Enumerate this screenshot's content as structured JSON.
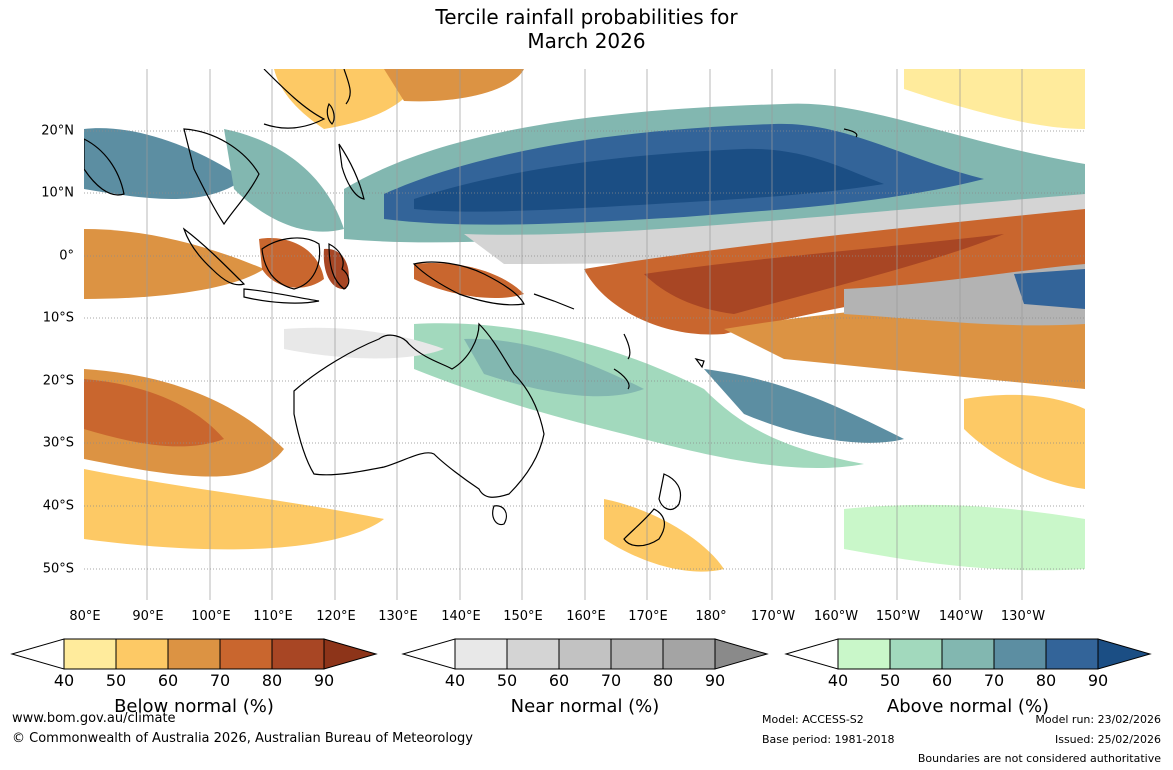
{
  "title_line1": "Tercile rainfall probabilities for",
  "title_line2": "March 2026",
  "lat_labels": [
    "20°N",
    "10°N",
    "0°",
    "10°S",
    "20°S",
    "30°S",
    "40°S",
    "50°S"
  ],
  "lon_labels": [
    "80°E",
    "90°E",
    "100°E",
    "110°E",
    "120°E",
    "130°E",
    "140°E",
    "150°E",
    "160°E",
    "170°E",
    "180°",
    "170°W",
    "160°W",
    "150°W",
    "140°W",
    "130°W"
  ],
  "colorbars": {
    "below": {
      "title": "Below normal (%)",
      "ticks": [
        "40",
        "50",
        "60",
        "70",
        "80",
        "90"
      ],
      "colors": [
        "#ffffff",
        "#ffeb9c",
        "#fdc965",
        "#dc9343",
        "#c9662e",
        "#a84624",
        "#8d3419"
      ]
    },
    "near": {
      "title": "Near normal (%)",
      "ticks": [
        "40",
        "50",
        "60",
        "70",
        "80",
        "90"
      ],
      "colors": [
        "#ffffff",
        "#e8e8e8",
        "#d4d4d4",
        "#c2c2c2",
        "#b3b3b3",
        "#a4a4a4",
        "#8a8a8a"
      ]
    },
    "above": {
      "title": "Above normal (%)",
      "ticks": [
        "40",
        "50",
        "60",
        "70",
        "80",
        "90"
      ],
      "colors": [
        "#ffffff",
        "#c9f7c9",
        "#a2d9bd",
        "#82b7b0",
        "#5c8ea2",
        "#336499",
        "#1b4e84"
      ]
    }
  },
  "footer": {
    "website": "www.bom.gov.au/climate",
    "copyright": "© Commonwealth of Australia 2026, Australian Bureau of Meteorology",
    "model": "Model: ACCESS-S2",
    "base_period": "Base period: 1981-2018",
    "model_run": "Model run: 23/02/2026",
    "issued": "Issued: 25/02/2026",
    "disclaimer": "Boundaries are not considered authoritative"
  }
}
